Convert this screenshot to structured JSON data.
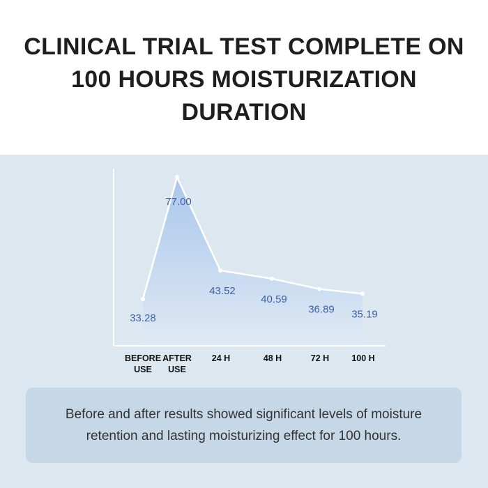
{
  "title_lines": [
    "CLINICAL TRIAL TEST COMPLETE ON",
    "100 HOURS MOISTURIZATION",
    "DURATION"
  ],
  "chart_data": {
    "type": "area",
    "categories": [
      [
        "BEFORE",
        "USE"
      ],
      [
        "AFTER",
        "USE"
      ],
      [
        "24 H"
      ],
      [
        "48 H"
      ],
      [
        "72 H"
      ],
      [
        "100 H"
      ]
    ],
    "values": [
      33.28,
      77.0,
      43.52,
      40.59,
      36.89,
      35.19
    ],
    "data_labels": [
      "33.28",
      "77.00",
      "43.52",
      "40.59",
      "36.89",
      "35.19"
    ],
    "grid": false,
    "colors": {
      "fill_top": "#a9c7ec",
      "fill_bottom": "#dfe9f4",
      "line": "#ffffff",
      "label": "#3d5fa6"
    }
  },
  "caption_lines": [
    "Before and after results showed significant levels of moisture",
    "retention and  lasting moisturizing effect for 100 hours."
  ]
}
